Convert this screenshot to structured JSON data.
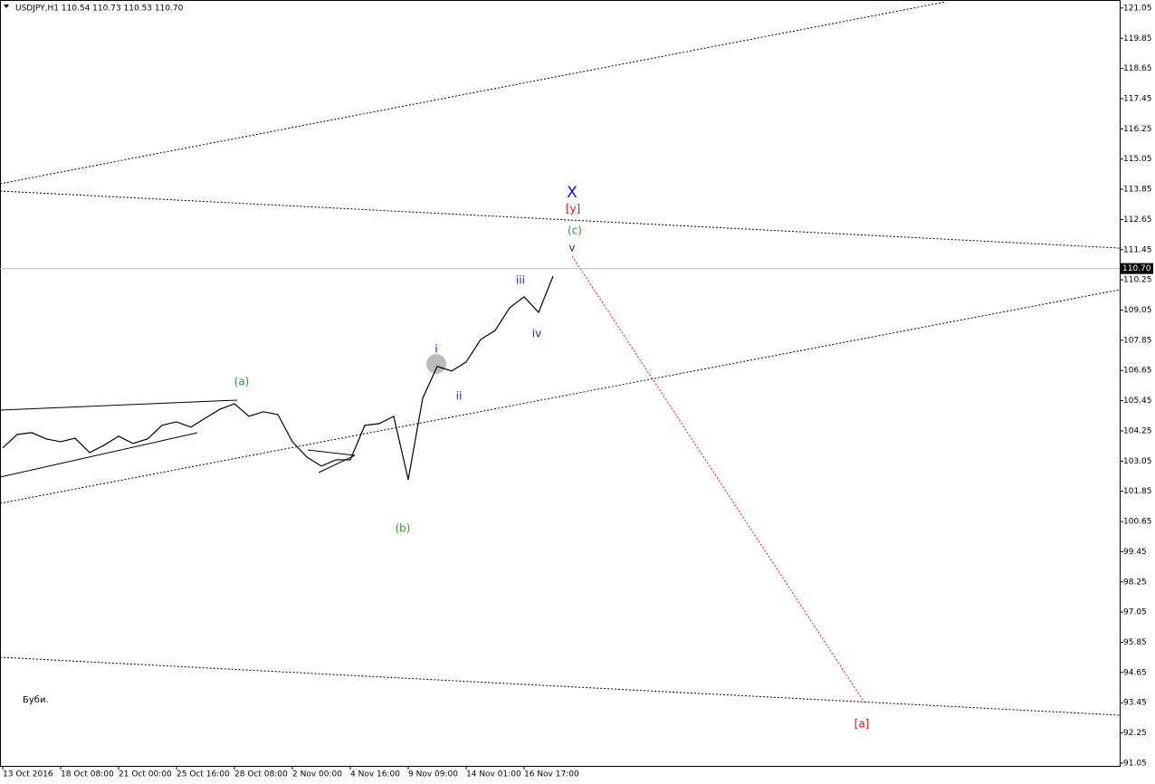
{
  "chart_data": {
    "type": "line",
    "title": "USDJPY,H1  110.54 110.73 110.53 110.70",
    "note": "Буби.",
    "categories": [
      "13 Oct 2016",
      null,
      null,
      null,
      "18 Oct 08:00",
      null,
      null,
      null,
      "21 Oct 00:00",
      null,
      null,
      null,
      "25 Oct 16:00",
      null,
      null,
      null,
      "28 Oct 08:00",
      null,
      null,
      null,
      "2 Nov 00:00",
      null,
      null,
      null,
      "4 Nov 16:00",
      null,
      null,
      null,
      "9 Nov 09:00",
      null,
      null,
      null,
      "14 Nov 01:00",
      null,
      null,
      null,
      "16 Nov 17:00",
      null,
      null
    ],
    "series": [
      {
        "name": "USDJPY",
        "color": "#000000",
        "values": [
          103.57,
          104.11,
          104.18,
          103.93,
          103.82,
          103.96,
          103.39,
          103.68,
          104.04,
          103.75,
          103.93,
          104.47,
          104.61,
          104.4,
          104.76,
          105.11,
          105.33,
          104.83,
          105.01,
          104.9,
          103.82,
          103.21,
          102.85,
          103.1,
          103.1,
          104.47,
          104.54,
          104.83,
          102.31,
          105.55,
          106.81,
          106.63,
          106.99,
          107.88,
          108.24,
          109.14,
          109.58,
          108.96,
          110.4
        ]
      }
    ],
    "ylim": [
      90.94,
      121.37
    ],
    "yticks": [
      121.05,
      119.85,
      118.65,
      117.45,
      116.25,
      115.05,
      113.85,
      112.65,
      111.45,
      110.25,
      109.05,
      107.85,
      106.65,
      105.45,
      104.25,
      103.05,
      101.85,
      100.65,
      99.45,
      98.25,
      97.05,
      95.85,
      94.65,
      93.45,
      92.25,
      91.05
    ],
    "current_price": {
      "value": 110.7,
      "label": "110.70"
    },
    "annotations": [
      {
        "text": "(a)",
        "color": "#2e9a2e"
      },
      {
        "text": "(b)",
        "color": "#2e9a2e"
      },
      {
        "text": "i",
        "color": "#2020d0"
      },
      {
        "text": "ii",
        "color": "#2020d0"
      },
      {
        "text": "iii",
        "color": "#2020d0"
      },
      {
        "text": "iv",
        "color": "#2020d0"
      },
      {
        "text": "v",
        "color": "#2020d0"
      },
      {
        "text": "(c)",
        "color": "#2e9a2e"
      },
      {
        "text": "[y]",
        "color": "#e01010"
      },
      {
        "text": "X",
        "color": "#1010f0"
      },
      {
        "text": "[a]",
        "color": "#e01010"
      }
    ],
    "grid": false
  }
}
